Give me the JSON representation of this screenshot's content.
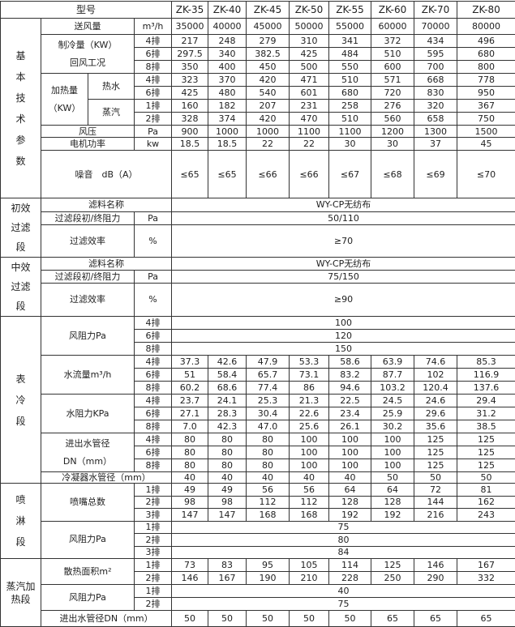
{
  "header": {
    "label": "型号",
    "models": [
      "ZK-35",
      "ZK-40",
      "ZK-45",
      "ZK-50",
      "ZK-55",
      "ZK-60",
      "ZK-70",
      "ZK-80"
    ]
  },
  "sections": [
    {
      "label": "基本技术参数",
      "groups": [
        {
          "label": "送风量",
          "unit": "m³/h",
          "values": [
            "35000",
            "40000",
            "45000",
            "50000",
            "55000",
            "60000",
            "70000",
            "80000"
          ]
        },
        {
          "label": [
            "制冷量（KW）",
            "回风工况"
          ],
          "rows": [
            {
              "row": "4排",
              "values": [
                "217",
                "248",
                "279",
                "310",
                "341",
                "372",
                "434",
                "496"
              ]
            },
            {
              "row": "6排",
              "values": [
                "297.5",
                "340",
                "382.5",
                "425",
                "484",
                "510",
                "595",
                "680"
              ]
            },
            {
              "row": "8排",
              "values": [
                "350",
                "400",
                "450",
                "500",
                "550",
                "600",
                "700",
                "800"
              ]
            }
          ]
        },
        {
          "label": [
            "加热量",
            "（KW）"
          ],
          "subgroups": [
            {
              "label": "热水",
              "rows": [
                {
                  "row": "4排",
                  "values": [
                    "323",
                    "370",
                    "420",
                    "471",
                    "510",
                    "571",
                    "668",
                    "778"
                  ]
                },
                {
                  "row": "6排",
                  "values": [
                    "425",
                    "480",
                    "540",
                    "601",
                    "680",
                    "720",
                    "830",
                    "950"
                  ]
                }
              ]
            },
            {
              "label": "蒸汽",
              "rows": [
                {
                  "row": "1排",
                  "values": [
                    "160",
                    "182",
                    "207",
                    "231",
                    "258",
                    "276",
                    "320",
                    "367"
                  ]
                },
                {
                  "row": "2排",
                  "values": [
                    "328",
                    "374",
                    "420",
                    "470",
                    "510",
                    "560",
                    "658",
                    "750"
                  ]
                }
              ]
            }
          ]
        },
        {
          "label": "风压",
          "unit": "Pa",
          "values": [
            "900",
            "1000",
            "1000",
            "1100",
            "1100",
            "1200",
            "1300",
            "1500"
          ]
        },
        {
          "label": "电机功率",
          "unit": "kw",
          "values": [
            "18.5",
            "18.5",
            "22",
            "22",
            "30",
            "30",
            "37",
            "45"
          ]
        },
        {
          "label": "噪音　dB（A）",
          "values": [
            "≤65",
            "≤65",
            "≤66",
            "≤66",
            "≤67",
            "≤68",
            "≤69",
            "≤70"
          ]
        }
      ]
    },
    {
      "label": "初效过滤段",
      "groups": [
        {
          "label": "滤料名称",
          "value": "WY-CP无纺布"
        },
        {
          "label": "过滤段初/终阻力",
          "unit": "Pa",
          "value": "50/110"
        },
        {
          "label": "过滤效率",
          "unit": "%",
          "value": "≥70"
        }
      ]
    },
    {
      "label": "中效过滤段",
      "groups": [
        {
          "label": "滤料名称",
          "value": "WY-CP无纺布"
        },
        {
          "label": "过滤段初/终阻力",
          "unit": "Pa",
          "value": "75/150"
        },
        {
          "label": "过滤效率",
          "unit": "%",
          "value": "≥90"
        }
      ]
    },
    {
      "label": "表冷段",
      "groups": [
        {
          "label": [
            "风阻力Pa"
          ],
          "rows": [
            {
              "row": "4排",
              "value": "100"
            },
            {
              "row": "6排",
              "value": "120"
            },
            {
              "row": "8排",
              "value": "150"
            }
          ]
        },
        {
          "label": [
            "水流量m³/h"
          ],
          "rows": [
            {
              "row": "4排",
              "values": [
                "37.3",
                "42.6",
                "47.9",
                "53.3",
                "58.6",
                "63.9",
                "74.6",
                "85.3"
              ]
            },
            {
              "row": "6排",
              "values": [
                "51",
                "58.4",
                "65.7",
                "73.1",
                "83.2",
                "87.7",
                "102",
                "116.9"
              ]
            },
            {
              "row": "8排",
              "values": [
                "60.2",
                "68.6",
                "77.4",
                "86",
                "94.6",
                "103.2",
                "120.4",
                "137.6"
              ]
            }
          ]
        },
        {
          "label": [
            "水阻力KPa"
          ],
          "rows": [
            {
              "row": "4排",
              "values": [
                "23.7",
                "24.1",
                "25.3",
                "21.3",
                "22.5",
                "24.5",
                "24.6",
                "29.4"
              ]
            },
            {
              "row": "6排",
              "values": [
                "27.1",
                "28.3",
                "30.4",
                "22.6",
                "23.4",
                "25.9",
                "29.6",
                "31.2"
              ]
            },
            {
              "row": "8排",
              "values": [
                "7.0",
                "42.3",
                "47.0",
                "25.6",
                "26.1",
                "30.2",
                "35.6",
                "38.5"
              ]
            }
          ]
        },
        {
          "label": [
            "进出水管径",
            "DN（mm）"
          ],
          "rows": [
            {
              "row": "4排",
              "values": [
                "80",
                "80",
                "80",
                "100",
                "100",
                "100",
                "125",
                "125"
              ]
            },
            {
              "row": "6排",
              "values": [
                "80",
                "80",
                "80",
                "100",
                "100",
                "100",
                "125",
                "125"
              ]
            },
            {
              "row": "8排",
              "values": [
                "80",
                "80",
                "80",
                "100",
                "100",
                "100",
                "125",
                "125"
              ]
            }
          ]
        },
        {
          "label": "冷凝器水管径（mm）",
          "values": [
            "40",
            "40",
            "40",
            "40",
            "40",
            "50",
            "50",
            "50"
          ]
        }
      ]
    },
    {
      "label": "喷淋段",
      "groups": [
        {
          "label": [
            "喷嘴总数"
          ],
          "rows": [
            {
              "row": "1排",
              "values": [
                "49",
                "49",
                "56",
                "56",
                "64",
                "64",
                "72",
                "81"
              ]
            },
            {
              "row": "2排",
              "values": [
                "98",
                "98",
                "112",
                "112",
                "128",
                "128",
                "144",
                "162"
              ]
            },
            {
              "row": "3排",
              "values": [
                "147",
                "147",
                "168",
                "168",
                "192",
                "192",
                "216",
                "243"
              ]
            }
          ]
        },
        {
          "label": [
            "风阻力Pa"
          ],
          "rows": [
            {
              "row": "1排",
              "value": "75"
            },
            {
              "row": "2排",
              "value": "80"
            },
            {
              "row": "3排",
              "value": "84"
            }
          ]
        }
      ]
    },
    {
      "label": "蒸汽加热段",
      "groups": [
        {
          "label": [
            "散热面积m²"
          ],
          "rows": [
            {
              "row": "1排",
              "values": [
                "73",
                "83",
                "95",
                "105",
                "114",
                "125",
                "146",
                "167"
              ]
            },
            {
              "row": "2排",
              "values": [
                "146",
                "167",
                "190",
                "210",
                "228",
                "250",
                "290",
                "332"
              ]
            }
          ]
        },
        {
          "label": [
            "风阻力Pa"
          ],
          "rows": [
            {
              "row": "1排",
              "value": "40"
            },
            {
              "row": "2排",
              "value": "75"
            }
          ]
        },
        {
          "label": "进出水管径DN（mm）",
          "values": [
            "50",
            "50",
            "50",
            "50",
            "50",
            "65",
            "65",
            "65"
          ]
        }
      ]
    }
  ]
}
